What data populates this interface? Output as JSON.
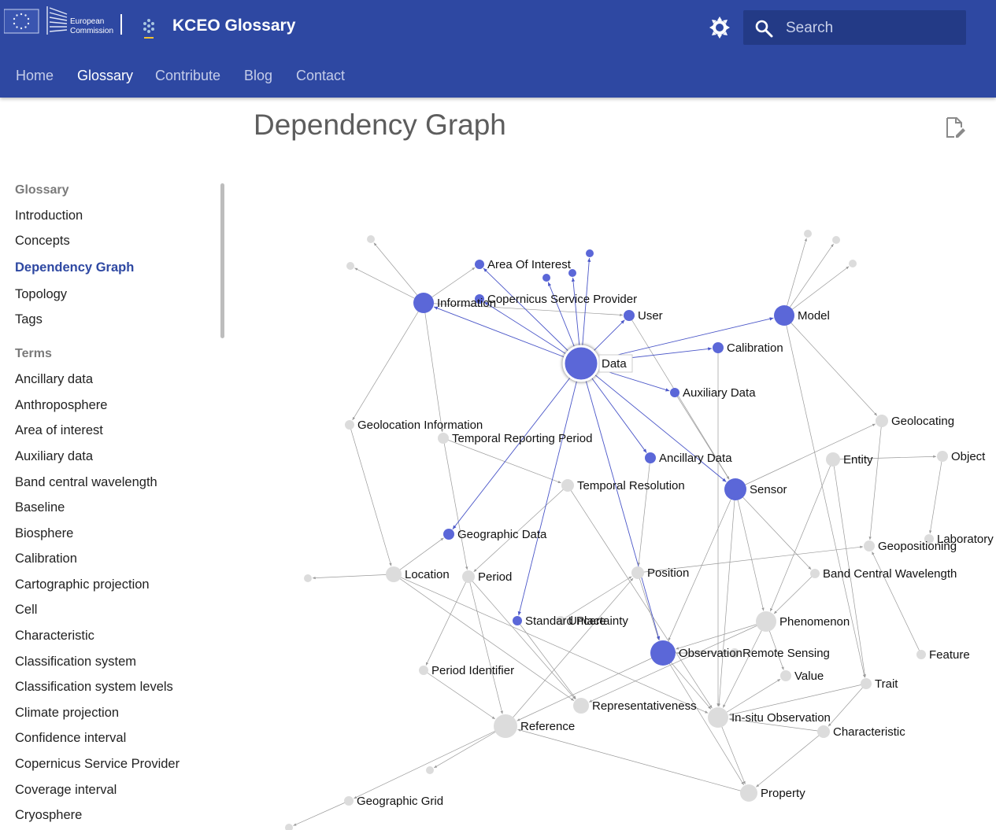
{
  "header": {
    "logo_line1": "European",
    "logo_line2": "Commission",
    "site_title": "KCEO Glossary",
    "search_placeholder": "Search",
    "theme_toggle_icon": "brightness-icon"
  },
  "tabs": [
    {
      "label": "Home",
      "active": false
    },
    {
      "label": "Glossary",
      "active": true
    },
    {
      "label": "Contribute",
      "active": false
    },
    {
      "label": "Blog",
      "active": false
    },
    {
      "label": "Contact",
      "active": false
    }
  ],
  "page": {
    "title": "Dependency Graph",
    "edit_icon": "edit-page-icon"
  },
  "sidebar": {
    "section1_title": "Glossary",
    "section1_items": [
      {
        "label": "Introduction",
        "active": false
      },
      {
        "label": "Concepts",
        "active": false
      },
      {
        "label": "Dependency Graph",
        "active": true
      },
      {
        "label": "Topology",
        "active": false
      },
      {
        "label": "Tags",
        "active": false
      }
    ],
    "section2_title": "Terms",
    "section2_items": [
      "Ancillary data",
      "Anthroposphere",
      "Area of interest",
      "Auxiliary data",
      "Band central wavelength",
      "Baseline",
      "Biosphere",
      "Calibration",
      "Cartographic projection",
      "Cell",
      "Characteristic",
      "Classification system",
      "Classification system levels",
      "Climate projection",
      "Confidence interval",
      "Copernicus Service Provider",
      "Coverage interval",
      "Cryosphere"
    ]
  },
  "graph": {
    "colors": {
      "highlight": "#5b67d8",
      "node": "#dcdcdc",
      "edge": "#999999"
    },
    "labels": {
      "area_of_interest": "Area Of Interest",
      "information": "Information",
      "copernicus_service_provider": "Copernicus Service Provider",
      "user": "User",
      "model": "Model",
      "calibration": "Calibration",
      "data": "Data",
      "auxiliary_data": "Auxiliary Data",
      "geolocation_information": "Geolocation Information",
      "temporal_reporting_period": "Temporal Reporting Period",
      "geolocating": "Geolocating",
      "ancillary_data": "Ancillary Data",
      "entity": "Entity",
      "object": "Object",
      "temporal_resolution": "Temporal Resolution",
      "sensor": "Sensor",
      "geographic_data": "Geographic Data",
      "laboratory": "Laboratory",
      "geopositioning": "Geopositioning",
      "location": "Location",
      "period": "Period",
      "position": "Position",
      "band_central_wavelength": "Band Central Wavelength",
      "standard_place": "Standard Place",
      "uncertainty": "Uncertainty",
      "phenomenon": "Phenomenon",
      "observation": "Observation",
      "remote_sensing": "Remote Sensing",
      "feature": "Feature",
      "period_identifier": "Period Identifier",
      "value": "Value",
      "trait": "Trait",
      "representativeness": "Representativeness",
      "in_situ_observation": "In-situ Observation",
      "reference": "Reference",
      "characteristic": "Characteristic",
      "geographic_grid": "Geographic Grid",
      "property": "Property"
    }
  }
}
